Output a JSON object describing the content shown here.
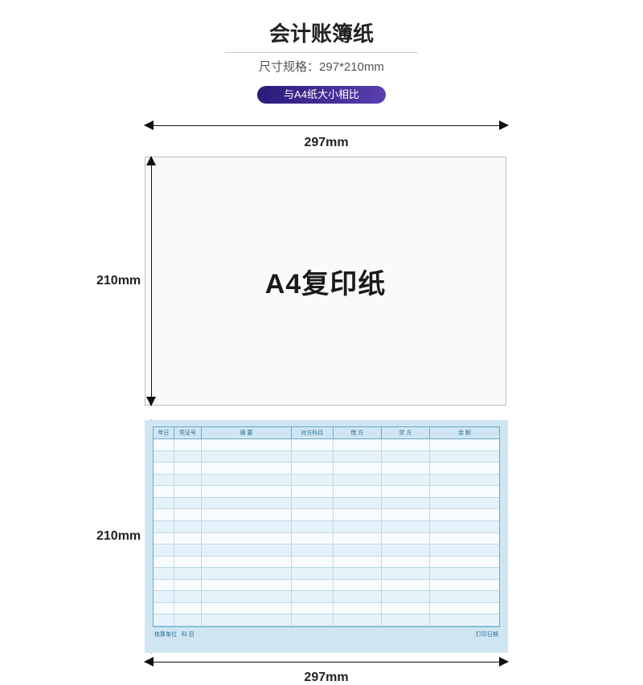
{
  "title": "会计账簿纸",
  "subtitle": "尺寸规格：297*210mm",
  "badge": {
    "text": "与A4纸大小相比",
    "bg_gradient_from": "#2b1a7a",
    "bg_gradient_to": "#5a3fb0"
  },
  "dimensions": {
    "width_label": "297mm",
    "height_label": "210mm"
  },
  "a4_sheet": {
    "label": "A4复印纸",
    "bg": "#fafafa",
    "border": "#bdbdbd"
  },
  "ledger": {
    "bg_outer": "#cfe6f2",
    "bg_inner": "#f5fbfe",
    "line_color": "#6aa9c9",
    "row_alt_bg": "#e6f2f9",
    "columns": [
      {
        "label": "年日",
        "w": 6
      },
      {
        "label": "凭证号",
        "w": 8
      },
      {
        "label": "摘 要",
        "w": 26
      },
      {
        "label": "对方科目",
        "w": 12
      },
      {
        "label": "借 方",
        "w": 14
      },
      {
        "label": "贷 方",
        "w": 14
      },
      {
        "label": "余 额",
        "w": 20
      }
    ],
    "row_count": 16,
    "footer_left": "核算单位",
    "footer_left2": "科 目",
    "footer_right": "打印日期"
  },
  "colors": {
    "text": "#222222",
    "subtext": "#555555",
    "arrow": "#111111"
  }
}
